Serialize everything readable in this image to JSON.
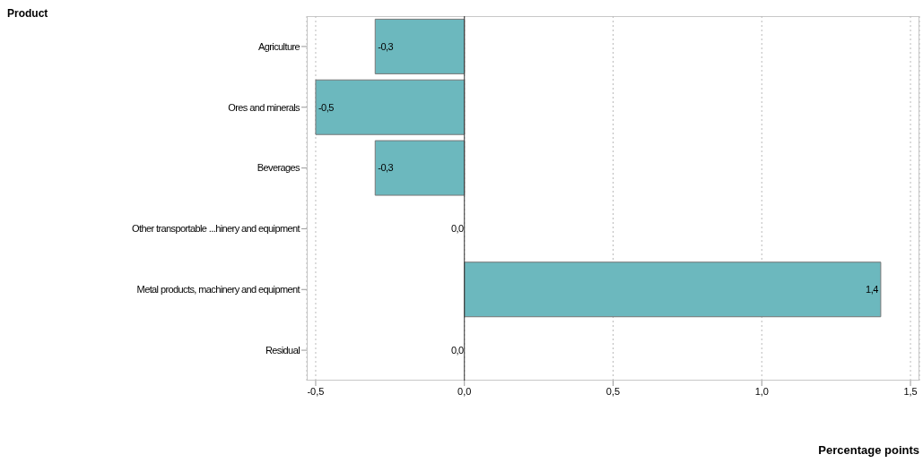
{
  "chart_data": {
    "type": "bar",
    "orientation": "horizontal",
    "title": "Product",
    "xlabel": "Percentage points",
    "categories": [
      "Agriculture",
      "Ores and minerals",
      "Beverages",
      "Other transportable ...hinery and equipment",
      "Metal products, machinery and equipment",
      "Residual"
    ],
    "values": [
      -0.3,
      -0.5,
      -0.3,
      0.0,
      1.4,
      0.0
    ],
    "value_labels": [
      "-0,3",
      "-0,5",
      "-0,3",
      "0,0",
      "1,4",
      "0,0"
    ],
    "color": "#6cb8be",
    "xlim": [
      -0.53,
      1.53
    ],
    "xticks": [
      {
        "value": -0.5,
        "label": "-0,5"
      },
      {
        "value": 0,
        "label": "0,0"
      },
      {
        "value": 0.5,
        "label": "0,5"
      },
      {
        "value": 1.0,
        "label": "1,0"
      },
      {
        "value": 1.5,
        "label": "1,5"
      }
    ],
    "grid": "x",
    "ref_lines": [
      {
        "axis": "x",
        "value": 0,
        "color": "#333333"
      }
    ]
  }
}
